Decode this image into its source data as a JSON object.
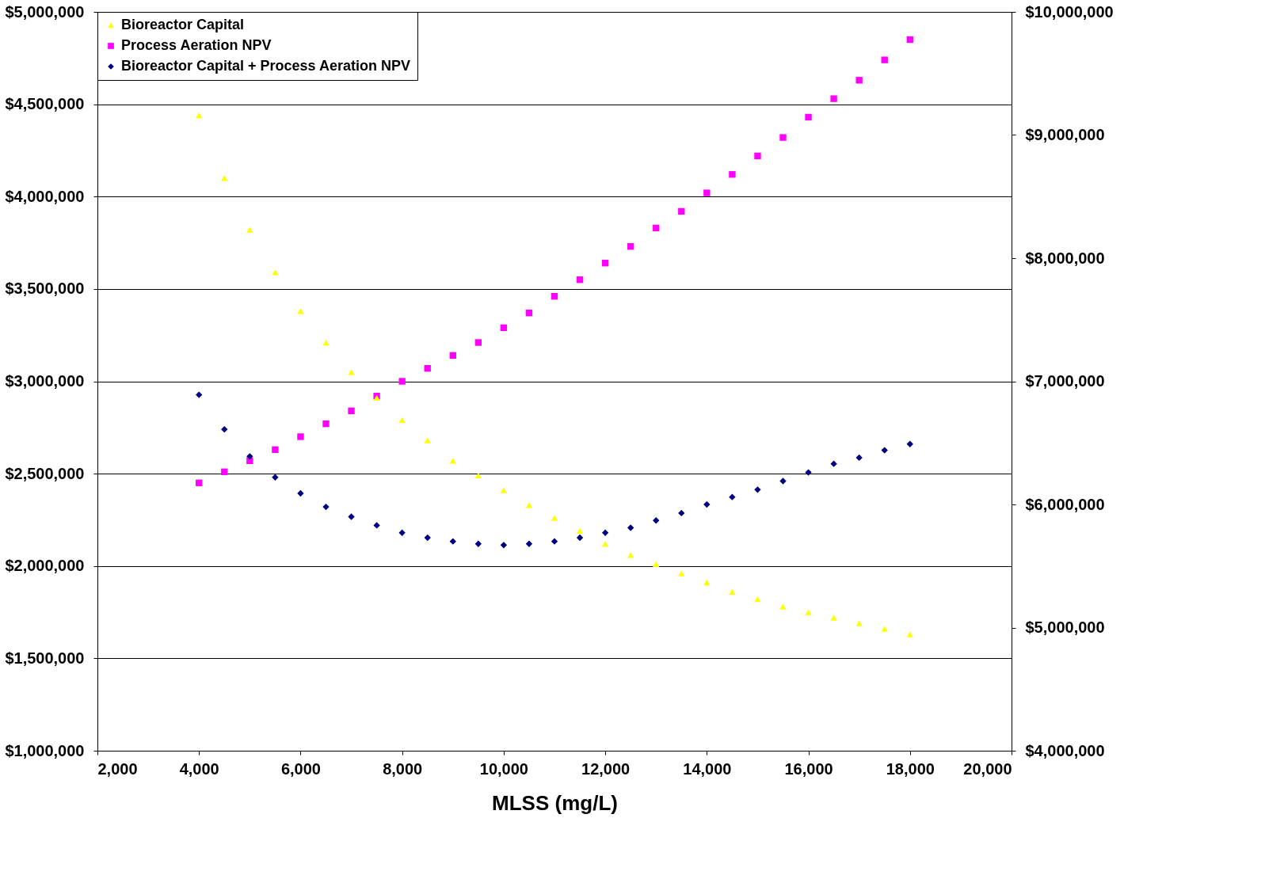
{
  "chart_data": {
    "type": "scatter",
    "xlabel": "MLSS (mg/L)",
    "x": [
      4000,
      4500,
      5000,
      5500,
      6000,
      6500,
      7000,
      7500,
      8000,
      8500,
      9000,
      9500,
      10000,
      10500,
      11000,
      11500,
      12000,
      12500,
      13000,
      13500,
      14000,
      14500,
      15000,
      15500,
      16000,
      16500,
      17000,
      17500,
      18000
    ],
    "series": [
      {
        "name": "Bioreactor Capital",
        "color": "#ffff00",
        "marker": "triangle",
        "values": [
          4440000,
          4100000,
          3820000,
          3590000,
          3380000,
          3210000,
          3050000,
          2910000,
          2790000,
          2680000,
          2570000,
          2490000,
          2410000,
          2330000,
          2260000,
          2190000,
          2120000,
          2060000,
          2010000,
          1960000,
          1910000,
          1860000,
          1820000,
          1780000,
          1750000,
          1720000,
          1690000,
          1660000,
          1630000
        ]
      },
      {
        "name": "Process Aeration NPV",
        "color": "#ff00ff",
        "marker": "square",
        "values": [
          2450000,
          2510000,
          2570000,
          2630000,
          2700000,
          2770000,
          2840000,
          2920000,
          3000000,
          3070000,
          3140000,
          3210000,
          3290000,
          3370000,
          3460000,
          3550000,
          3640000,
          3730000,
          3830000,
          3920000,
          4020000,
          4120000,
          4220000,
          4320000,
          4430000,
          4530000,
          4630000,
          4740000,
          4850000
        ]
      },
      {
        "name": "Bioreactor Capital + Process Aeration NPV",
        "color": "#000080",
        "marker": "diamond",
        "axis": "y2",
        "values": [
          6890000,
          6610000,
          6390000,
          6220000,
          6090000,
          5980000,
          5900000,
          5830000,
          5770000,
          5730000,
          5700000,
          5680000,
          5670000,
          5680000,
          5700000,
          5730000,
          5770000,
          5810000,
          5870000,
          5930000,
          6000000,
          6060000,
          6120000,
          6190000,
          6260000,
          6330000,
          6380000,
          6440000,
          6490000
        ]
      }
    ],
    "xlim": [
      2000,
      20000
    ],
    "xticks": [
      {
        "value": 2000,
        "label": "2,000"
      },
      {
        "value": 4000,
        "label": "4,000"
      },
      {
        "value": 6000,
        "label": "6,000"
      },
      {
        "value": 8000,
        "label": "8,000"
      },
      {
        "value": 10000,
        "label": "10,000"
      },
      {
        "value": 12000,
        "label": "12,000"
      },
      {
        "value": 14000,
        "label": "14,000"
      },
      {
        "value": 16000,
        "label": "16,000"
      },
      {
        "value": 18000,
        "label": "18,000"
      },
      {
        "value": 20000,
        "label": "20,000"
      }
    ],
    "ylim": [
      1000000,
      5000000
    ],
    "yticks": [
      {
        "value": 1000000,
        "label": "$1,000,000"
      },
      {
        "value": 1500000,
        "label": "$1,500,000"
      },
      {
        "value": 2000000,
        "label": "$2,000,000"
      },
      {
        "value": 2500000,
        "label": "$2,500,000"
      },
      {
        "value": 3000000,
        "label": "$3,000,000"
      },
      {
        "value": 3500000,
        "label": "$3,500,000"
      },
      {
        "value": 4000000,
        "label": "$4,000,000"
      },
      {
        "value": 4500000,
        "label": "$4,500,000"
      },
      {
        "value": 5000000,
        "label": "$5,000,000"
      }
    ],
    "y2lim": [
      4000000,
      10000000
    ],
    "y2ticks": [
      {
        "value": 4000000,
        "label": "$4,000,000"
      },
      {
        "value": 5000000,
        "label": "$5,000,000"
      },
      {
        "value": 6000000,
        "label": "$6,000,000"
      },
      {
        "value": 7000000,
        "label": "$7,000,000"
      },
      {
        "value": 8000000,
        "label": "$8,000,000"
      },
      {
        "value": 9000000,
        "label": "$9,000,000"
      },
      {
        "value": 10000000,
        "label": "$10,000,000"
      }
    ],
    "grid": "y",
    "legend": "top left"
  }
}
